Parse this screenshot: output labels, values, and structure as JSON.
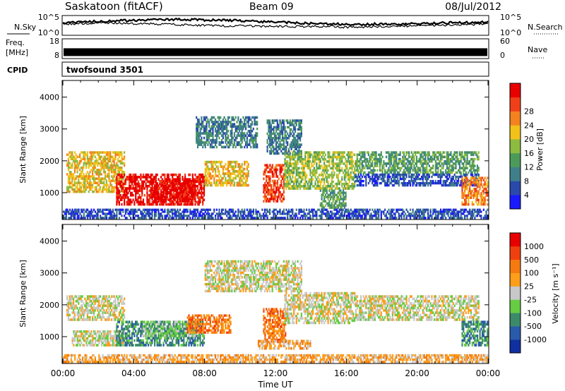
{
  "header": {
    "station": "Saskatoon (fitACF)",
    "beam": "Beam 09",
    "date": "08/Jul/2012"
  },
  "noise_panel": {
    "left_label": "N.Sky",
    "left_ticks": [
      "10^5",
      "10^0"
    ],
    "right_label": "N.Search",
    "right_ticks": [
      "10^5",
      "10^0"
    ],
    "sky_trace": [
      3.2,
      3.4,
      3.6,
      3.8,
      3.9,
      4.0,
      4.1,
      4.1,
      4.0,
      3.9,
      3.8,
      3.6,
      3.4,
      3.2,
      3.0,
      2.9,
      2.8,
      2.8,
      2.9,
      2.9,
      3.0,
      3.1,
      3.2,
      3.3,
      3.4
    ],
    "search_trace": [
      2.9,
      3.0,
      3.1,
      3.1,
      3.0,
      2.9,
      2.8,
      2.6,
      2.5,
      2.4,
      2.4,
      2.3,
      2.3,
      2.2,
      2.2,
      2.3,
      2.0,
      2.1,
      2.2,
      2.3,
      2.4,
      2.5,
      2.6,
      2.7,
      3.0
    ]
  },
  "freq_panel": {
    "left_label_top": "Freq.",
    "left_label_bottom": "[MHz]",
    "left_ticks": [
      "18",
      "8"
    ],
    "right_label": "Nave",
    "right_ticks": [
      "60",
      "0"
    ],
    "freq_mhz": 11.3
  },
  "cpid": {
    "label": "CPID",
    "value": "twofsound 3501"
  },
  "x_axis": {
    "ticks": [
      "00:00",
      "04:00",
      "08:00",
      "12:00",
      "16:00",
      "20:00",
      "00:00"
    ],
    "title": "Time UT"
  },
  "chart_data": [
    {
      "type": "heatmap",
      "parameter": "Power",
      "ylabel": "Slant Range [km]",
      "ylim": [
        180,
        4500
      ],
      "y_ticks": [
        1000,
        2000,
        3000,
        4000
      ],
      "xlim_hours": [
        0,
        24
      ],
      "colorbar": {
        "title": "Power [dB]",
        "ticks": [
          "4",
          "8",
          "12",
          "16",
          "20",
          "24",
          "28"
        ],
        "colors": [
          "#1a1aff",
          "#2a4aaa",
          "#3f7f8a",
          "#4c9a5a",
          "#8dbb40",
          "#f2c21a",
          "#f58220",
          "#f0401a",
          "#e80000"
        ]
      },
      "echo_regions": [
        {
          "t0": 0.2,
          "t1": 3.5,
          "r0": 1000,
          "r1": 2300,
          "level": 5
        },
        {
          "t0": 3.0,
          "t1": 8.0,
          "r0": 600,
          "r1": 1600,
          "level": 8
        },
        {
          "t0": 5.0,
          "t1": 7.5,
          "r0": 700,
          "r1": 1400,
          "level": 8
        },
        {
          "t0": 8.0,
          "t1": 10.5,
          "r0": 1200,
          "r1": 2000,
          "level": 5
        },
        {
          "t0": 11.3,
          "t1": 12.5,
          "r0": 700,
          "r1": 1900,
          "level": 7
        },
        {
          "t0": 12.5,
          "t1": 16.5,
          "r0": 1100,
          "r1": 2300,
          "level": 4
        },
        {
          "t0": 14.5,
          "t1": 16.0,
          "r0": 500,
          "r1": 1100,
          "level": 3
        },
        {
          "t0": 16.5,
          "t1": 23.5,
          "r0": 1600,
          "r1": 2300,
          "level": 3
        },
        {
          "t0": 16.5,
          "t1": 23.5,
          "r0": 1200,
          "r1": 1600,
          "level": 1
        },
        {
          "t0": 22.5,
          "t1": 24.0,
          "r0": 600,
          "r1": 1500,
          "level": 6
        },
        {
          "t0": 7.5,
          "t1": 11.0,
          "r0": 2400,
          "r1": 3400,
          "level": 2
        },
        {
          "t0": 11.5,
          "t1": 13.5,
          "r0": 2200,
          "r1": 3300,
          "level": 2
        },
        {
          "t0": 0.0,
          "t1": 24.0,
          "r0": 180,
          "r1": 500,
          "level": 1
        }
      ]
    },
    {
      "type": "heatmap",
      "parameter": "Velocity",
      "ylabel": "Slant Range [km]",
      "ylim": [
        180,
        4500
      ],
      "y_ticks": [
        1000,
        2000,
        3000,
        4000
      ],
      "xlim_hours": [
        0,
        24
      ],
      "colorbar": {
        "title": "Velocity [m s⁻¹]",
        "ticks": [
          "1000",
          "500",
          "100",
          "25",
          "-25",
          "-100",
          "-500",
          "-1000"
        ],
        "colors": [
          "#1030a0",
          "#2a5aaa",
          "#3c8a6a",
          "#66cc44",
          "#c8c8c8",
          "#ff9e1a",
          "#f57a10",
          "#f04010",
          "#e80000"
        ]
      },
      "echo_regions": [
        {
          "t0": 0.2,
          "t1": 3.5,
          "r0": 1500,
          "r1": 2300,
          "level": 4
        },
        {
          "t0": 0.5,
          "t1": 3.5,
          "r0": 700,
          "r1": 1200,
          "level": 4
        },
        {
          "t0": 3.0,
          "t1": 8.0,
          "r0": 700,
          "r1": 1500,
          "level": 2
        },
        {
          "t0": 4.5,
          "t1": 7.5,
          "r0": 1000,
          "r1": 1500,
          "level": 3
        },
        {
          "t0": 7.0,
          "t1": 9.5,
          "r0": 1100,
          "r1": 1700,
          "level": 6
        },
        {
          "t0": 11.3,
          "t1": 12.6,
          "r0": 800,
          "r1": 1900,
          "level": 6
        },
        {
          "t0": 11.0,
          "t1": 14.0,
          "r0": 600,
          "r1": 900,
          "level": 5
        },
        {
          "t0": 12.5,
          "t1": 16.5,
          "r0": 1400,
          "r1": 2400,
          "level": 4
        },
        {
          "t0": 16.5,
          "t1": 23.5,
          "r0": 1500,
          "r1": 2300,
          "level": 4
        },
        {
          "t0": 22.5,
          "t1": 24.0,
          "r0": 700,
          "r1": 1500,
          "level": 2
        },
        {
          "t0": 8.0,
          "t1": 13.5,
          "r0": 2400,
          "r1": 3400,
          "level": 4
        },
        {
          "t0": 0.0,
          "t1": 24.0,
          "r0": 180,
          "r1": 450,
          "level": 5
        }
      ]
    }
  ]
}
